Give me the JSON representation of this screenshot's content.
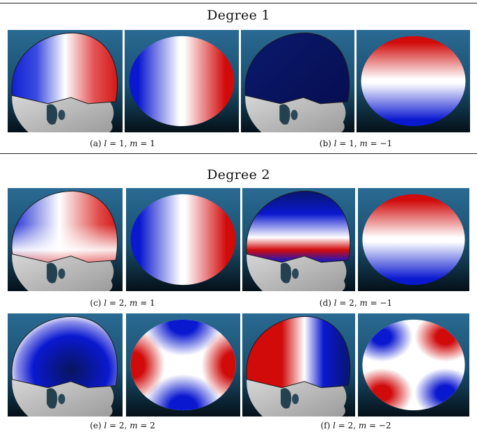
{
  "sections": [
    {
      "title": "Degree 1"
    },
    {
      "title": "Degree 2"
    }
  ],
  "figures": [
    {
      "id": "a",
      "label": "(a)",
      "l": "1",
      "m": "1",
      "head": "lr-br",
      "sphere": "horiz-br"
    },
    {
      "id": "b",
      "label": "(b)",
      "l": "1",
      "m": "−1",
      "head": "dark",
      "sphere": "vert-rb"
    },
    {
      "id": "c",
      "label": "(c)",
      "l": "2",
      "m": "1",
      "head": "c-pattern",
      "sphere": "horiz-br"
    },
    {
      "id": "d",
      "label": "(d)",
      "l": "2",
      "m": "−1",
      "head": "d-pattern",
      "sphere": "vert-rb"
    },
    {
      "id": "e",
      "label": "(e)",
      "l": "2",
      "m": "2",
      "head": "e-pattern",
      "sphere": "x-pattern"
    },
    {
      "id": "f",
      "label": "(f)",
      "l": "2",
      "m": "−2",
      "head": "f-pattern",
      "sphere": "plus-pattern"
    }
  ],
  "colors": {
    "red": "#d10a0a",
    "blue": "#0a18d0",
    "white": "#ffffff",
    "bg_top": "#2a6a93",
    "bg_bottom": "#041018",
    "face": "#bdbdbd"
  }
}
